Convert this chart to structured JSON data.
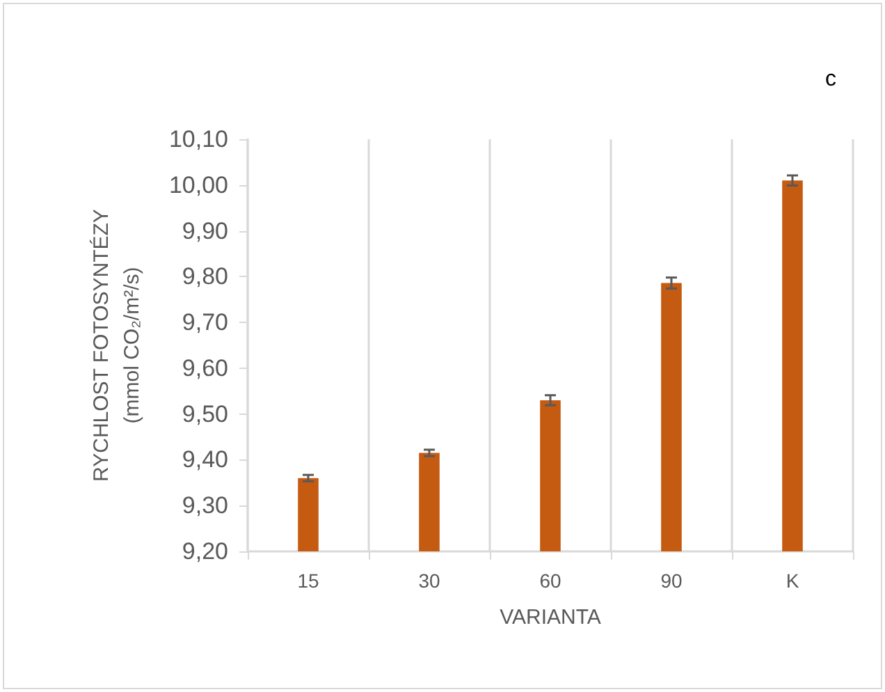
{
  "chart_data": {
    "type": "bar",
    "xlabel": "VARIANTA",
    "ylabel": "RYCHLOST FOTOSYNTÉZY\n(mmol CO₂/m²/s)",
    "annotations": [
      "c"
    ],
    "categories": [
      "15",
      "30",
      "60",
      "90",
      "K"
    ],
    "values": [
      9.36,
      9.415,
      9.53,
      9.786,
      10.01
    ],
    "errors": [
      0.007,
      0.007,
      0.011,
      0.012,
      0.011
    ],
    "color": "#c55a11",
    "ylim": [
      9.2,
      10.1
    ],
    "yticks": [
      {
        "value": 9.2,
        "label": "9,20"
      },
      {
        "value": 9.3,
        "label": "9,30"
      },
      {
        "value": 9.4,
        "label": "9,40"
      },
      {
        "value": 9.5,
        "label": "9,50"
      },
      {
        "value": 9.6,
        "label": "9,60"
      },
      {
        "value": 9.7,
        "label": "9,70"
      },
      {
        "value": 9.8,
        "label": "9,80"
      },
      {
        "value": 9.9,
        "label": "9,90"
      },
      {
        "value": 10.0,
        "label": "10,00"
      },
      {
        "value": 10.1,
        "label": "10,10"
      }
    ],
    "grid": "x"
  }
}
